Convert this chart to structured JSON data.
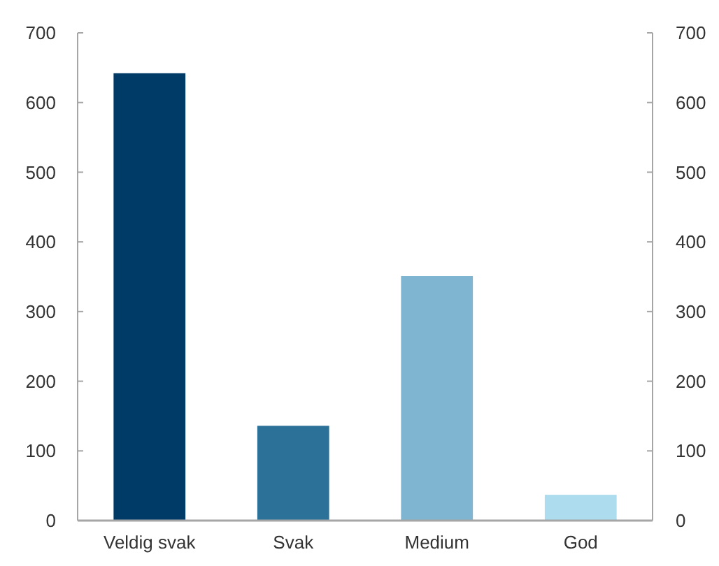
{
  "chart_data": {
    "type": "bar",
    "categories": [
      "Veldig svak",
      "Svak",
      "Medium",
      "God"
    ],
    "values": [
      642,
      136,
      351,
      37
    ],
    "colors": [
      "#003a66",
      "#2c7198",
      "#7fb5d0",
      "#addcee"
    ],
    "ylim": [
      0,
      700
    ],
    "yticks": [
      0,
      100,
      200,
      300,
      400,
      500,
      600,
      700
    ],
    "y2lim": [
      0,
      700
    ],
    "y2ticks": [
      0,
      100,
      200,
      300,
      400,
      500,
      600,
      700
    ]
  }
}
